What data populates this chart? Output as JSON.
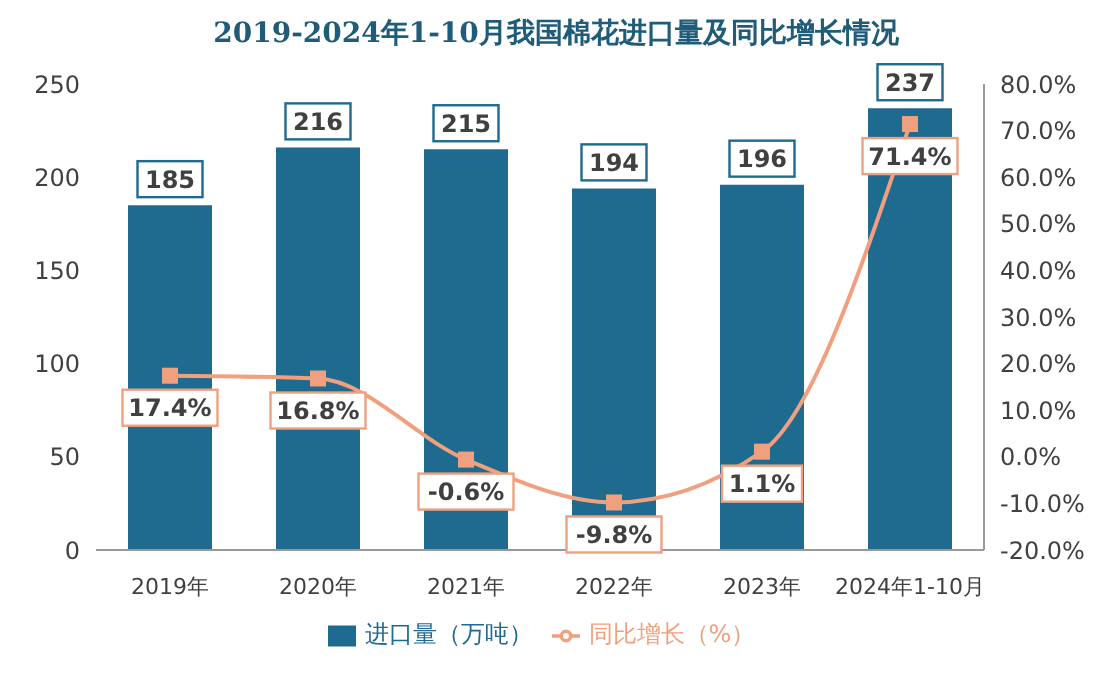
{
  "chart_data": {
    "type": "bar",
    "title": "2019-2024年1-10月我国棉花进口量及同比增长情况",
    "categories": [
      "2019年",
      "2020年",
      "2021年",
      "2022年",
      "2023年",
      "2024年1-10月"
    ],
    "series": [
      {
        "name": "进口量（万吨）",
        "color": "#1f6a8f",
        "values": [
          185,
          216,
          215,
          194,
          196,
          237
        ],
        "value_labels": [
          "185",
          "216",
          "215",
          "194",
          "196",
          "237"
        ]
      },
      {
        "name": "同比增长（%）",
        "type": "line",
        "axis": "y2",
        "color": "#f0a07e",
        "values": [
          17.4,
          16.8,
          -0.6,
          -9.8,
          1.1,
          71.4
        ],
        "value_labels": [
          "17.4%",
          "16.8%",
          "-0.6%",
          "-9.8%",
          "1.1%",
          "71.4%"
        ]
      }
    ],
    "ylim": [
      0,
      250
    ],
    "yticks": [
      0,
      50,
      100,
      150,
      200,
      250
    ],
    "y2lim": [
      -20,
      80
    ],
    "y2ticks": [
      {
        "value": -20,
        "label": "-20.0%"
      },
      {
        "value": -10,
        "label": "-10.0%"
      },
      {
        "value": 0,
        "label": "0.0%"
      },
      {
        "value": 10,
        "label": "10.0%"
      },
      {
        "value": 20,
        "label": "20.0%"
      },
      {
        "value": 30,
        "label": "30.0%"
      },
      {
        "value": 40,
        "label": "40.0%"
      },
      {
        "value": 50,
        "label": "50.0%"
      },
      {
        "value": 60,
        "label": "60.0%"
      },
      {
        "value": 70,
        "label": "70.0%"
      },
      {
        "value": 80,
        "label": "80.0%"
      }
    ],
    "legend": "bottom",
    "marker": "square",
    "grid": false
  }
}
